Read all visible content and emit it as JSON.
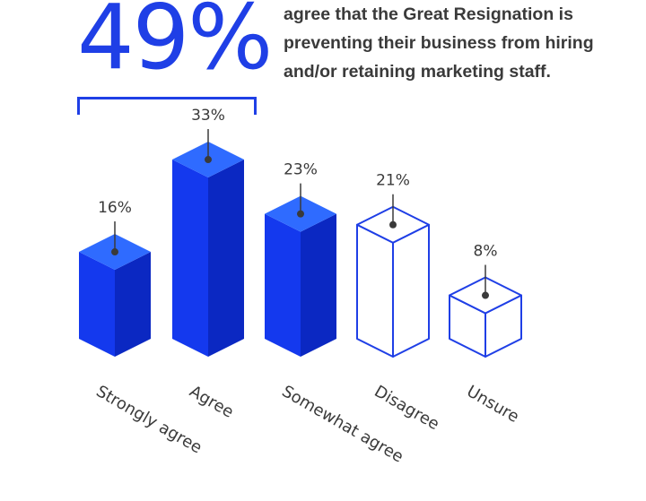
{
  "headline": {
    "stat": "49%",
    "text": "agree that the Great Resignation is preventing their business from hiring and/or retaining marketing staff."
  },
  "colors": {
    "accent": "#1f3fe6",
    "top_face": "#2f6bff",
    "left_face": "#1439ee",
    "right_face": "#0b28c2",
    "text": "#3a3a3a"
  },
  "chart_data": {
    "type": "bar",
    "categories": [
      "Strongly agree",
      "Agree",
      "Somewhat agree",
      "Disagree",
      "Unsure"
    ],
    "values": [
      16,
      33,
      23,
      21,
      8
    ],
    "value_labels": [
      "16%",
      "33%",
      "23%",
      "21%",
      "8%"
    ],
    "styles": [
      "filled",
      "filled",
      "filled",
      "outline",
      "outline"
    ],
    "ylim": [
      0,
      33
    ],
    "grid": false
  }
}
